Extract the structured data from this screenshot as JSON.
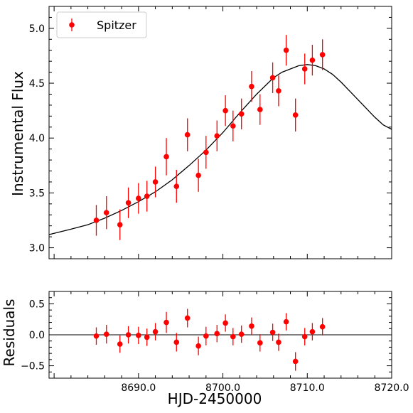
{
  "chart_data": [
    {
      "type": "scatter",
      "panel": "main",
      "ylabel": "Instrumental Flux",
      "xlim": [
        8679.4,
        8720.0
      ],
      "ylim": [
        2.9,
        5.2
      ],
      "yticks": [
        3.0,
        3.5,
        4.0,
        4.5,
        5.0
      ],
      "ytick_labels": [
        "3.0",
        "3.5",
        "4.0",
        "4.5",
        "5.0"
      ],
      "legend": {
        "position": "top-left",
        "label": "Spitzer"
      },
      "colors": {
        "points": "#ff0000",
        "model": "#000000"
      },
      "series": [
        {
          "name": "Spitzer",
          "x": [
            8685.0,
            8686.2,
            8687.8,
            8688.8,
            8690.0,
            8691.0,
            8692.0,
            8693.3,
            8694.5,
            8695.8,
            8697.1,
            8698.0,
            8699.3,
            8700.3,
            8701.2,
            8702.2,
            8703.4,
            8704.4,
            8705.9,
            8706.6,
            8707.5,
            8708.6,
            8709.7,
            8710.6,
            8711.8
          ],
          "y": [
            3.25,
            3.32,
            3.21,
            3.41,
            3.45,
            3.47,
            3.6,
            3.83,
            3.56,
            4.03,
            3.66,
            3.87,
            4.02,
            4.25,
            4.11,
            4.22,
            4.47,
            4.26,
            4.55,
            4.43,
            4.8,
            4.21,
            4.63,
            4.71,
            4.76
          ],
          "yerr": [
            0.14,
            0.15,
            0.14,
            0.14,
            0.14,
            0.14,
            0.14,
            0.17,
            0.15,
            0.15,
            0.15,
            0.15,
            0.14,
            0.14,
            0.14,
            0.14,
            0.14,
            0.14,
            0.14,
            0.14,
            0.14,
            0.15,
            0.14,
            0.14,
            0.14
          ]
        }
      ],
      "model": {
        "x": [
          8679.4,
          8682,
          8684,
          8686,
          8688,
          8690,
          8692,
          8694,
          8696,
          8698,
          8700,
          8702,
          8704,
          8706,
          8707,
          8708,
          8709,
          8710,
          8711,
          8712,
          8713,
          8714,
          8715,
          8716,
          8717,
          8718,
          8719,
          8720
        ],
        "y": [
          3.12,
          3.17,
          3.21,
          3.27,
          3.34,
          3.42,
          3.51,
          3.62,
          3.75,
          3.89,
          4.05,
          4.23,
          4.4,
          4.55,
          4.6,
          4.63,
          4.66,
          4.67,
          4.66,
          4.63,
          4.58,
          4.51,
          4.43,
          4.35,
          4.27,
          4.19,
          4.12,
          4.08
        ]
      }
    },
    {
      "type": "scatter",
      "panel": "residuals",
      "xlabel": "HJD-2450000",
      "ylabel": "Residuals",
      "xlim": [
        8679.4,
        8720.0
      ],
      "ylim": [
        -0.7,
        0.7
      ],
      "xticks": [
        8690.0,
        8700.0,
        8710.0,
        8720.0
      ],
      "xtick_labels": [
        "8690.0",
        "8700.0",
        "8710.0",
        "8720.0"
      ],
      "yticks": [
        -0.5,
        0.0,
        0.5
      ],
      "ytick_labels": [
        "−0.5",
        "0.0",
        "0.5"
      ],
      "zero_line": 0.0,
      "series": [
        {
          "name": "Spitzer",
          "x": [
            8685.0,
            8686.2,
            8687.8,
            8688.8,
            8690.0,
            8691.0,
            8692.0,
            8693.3,
            8694.5,
            8695.8,
            8697.1,
            8698.0,
            8699.3,
            8700.3,
            8701.2,
            8702.2,
            8703.4,
            8704.4,
            8705.9,
            8706.6,
            8707.5,
            8708.6,
            8709.7,
            8710.6,
            8711.8
          ],
          "y": [
            -0.02,
            0.01,
            -0.15,
            0.0,
            -0.01,
            -0.04,
            0.05,
            0.2,
            -0.12,
            0.27,
            -0.18,
            -0.02,
            0.02,
            0.19,
            -0.03,
            0.01,
            0.14,
            -0.13,
            0.04,
            -0.12,
            0.21,
            -0.43,
            -0.03,
            0.05,
            0.13
          ],
          "yerr": [
            0.14,
            0.15,
            0.14,
            0.14,
            0.14,
            0.14,
            0.14,
            0.17,
            0.15,
            0.15,
            0.15,
            0.15,
            0.14,
            0.14,
            0.14,
            0.14,
            0.14,
            0.14,
            0.14,
            0.14,
            0.14,
            0.15,
            0.14,
            0.14,
            0.14
          ]
        }
      ]
    }
  ]
}
